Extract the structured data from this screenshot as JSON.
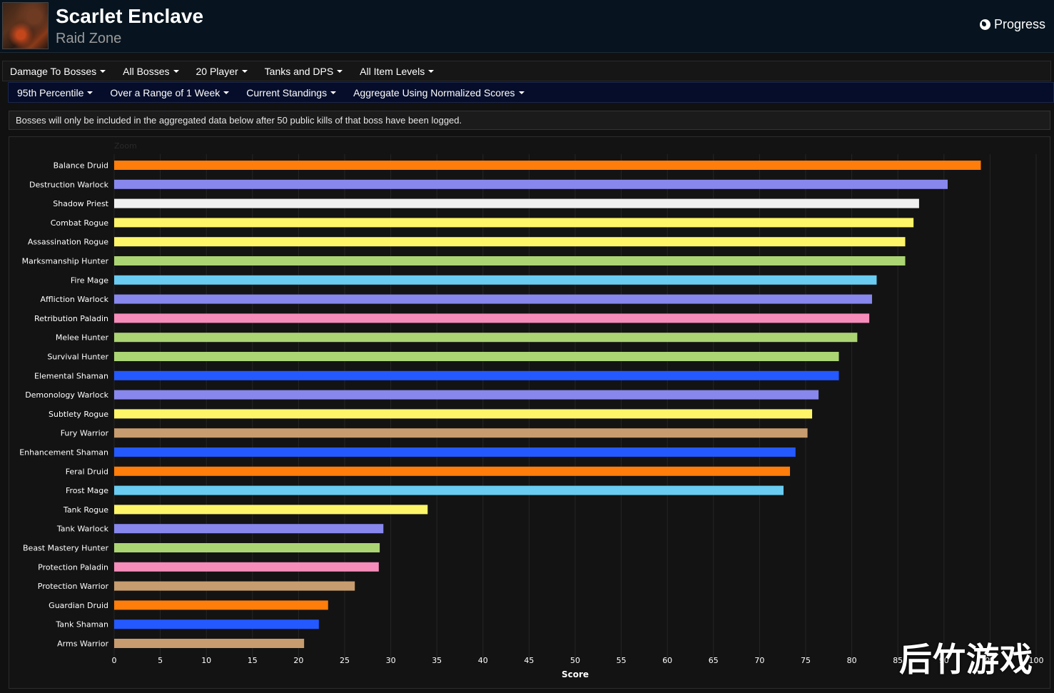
{
  "header": {
    "title": "Scarlet Enclave",
    "subtitle": "Raid Zone",
    "progress_label": "Progress",
    "zone_icon": "zone-thumbnail-icon"
  },
  "filters_row1": [
    {
      "label": "Damage To Bosses"
    },
    {
      "label": "All Bosses"
    },
    {
      "label": "20 Player"
    },
    {
      "label": "Tanks and DPS"
    },
    {
      "label": "All Item Levels"
    }
  ],
  "filters_row2": [
    {
      "label": "95th Percentile"
    },
    {
      "label": "Over a Range of 1 Week"
    },
    {
      "label": "Current Standings"
    },
    {
      "label": "Aggregate Using Normalized Scores"
    }
  ],
  "notice": "Bosses will only be included in the aggregated data below after 50 public kills of that boss have been logged.",
  "watermark": "后竹游戏",
  "chart_data": {
    "type": "bar",
    "orientation": "horizontal",
    "zoom_label": "Zoom",
    "xlabel": "Score",
    "xlim": [
      0,
      100
    ],
    "xticks": [
      0,
      5,
      10,
      15,
      20,
      25,
      30,
      35,
      40,
      45,
      50,
      55,
      60,
      65,
      70,
      75,
      80,
      85,
      90,
      95,
      100
    ],
    "grid": "vertical",
    "categories": [
      "Balance Druid",
      "Destruction Warlock",
      "Shadow Priest",
      "Combat Rogue",
      "Assassination Rogue",
      "Marksmanship Hunter",
      "Fire Mage",
      "Affliction Warlock",
      "Retribution Paladin",
      "Melee Hunter",
      "Survival Hunter",
      "Elemental Shaman",
      "Demonology Warlock",
      "Subtlety Rogue",
      "Fury Warrior",
      "Enhancement Shaman",
      "Feral Druid",
      "Frost Mage",
      "Tank Rogue",
      "Tank Warlock",
      "Beast Mastery Hunter",
      "Protection Paladin",
      "Protection Warrior",
      "Guardian Druid",
      "Tank Shaman",
      "Arms Warrior"
    ],
    "values": [
      94.0,
      90.4,
      87.3,
      86.7,
      85.8,
      85.8,
      82.7,
      82.2,
      81.9,
      80.6,
      78.6,
      78.6,
      76.4,
      75.7,
      75.2,
      73.9,
      73.3,
      72.6,
      34.0,
      29.2,
      28.8,
      28.7,
      26.1,
      23.2,
      22.2,
      20.6
    ],
    "colors": [
      "#ff7d0a",
      "#8787ed",
      "#f0f0f0",
      "#fff569",
      "#fff569",
      "#abd473",
      "#69ccf0",
      "#8787ed",
      "#f58cba",
      "#abd473",
      "#abd473",
      "#2459ff",
      "#8787ed",
      "#fff569",
      "#c79c6e",
      "#2459ff",
      "#ff7d0a",
      "#69ccf0",
      "#fff569",
      "#8787ed",
      "#abd473",
      "#f58cba",
      "#c79c6e",
      "#ff7d0a",
      "#2459ff",
      "#c79c6e"
    ]
  }
}
